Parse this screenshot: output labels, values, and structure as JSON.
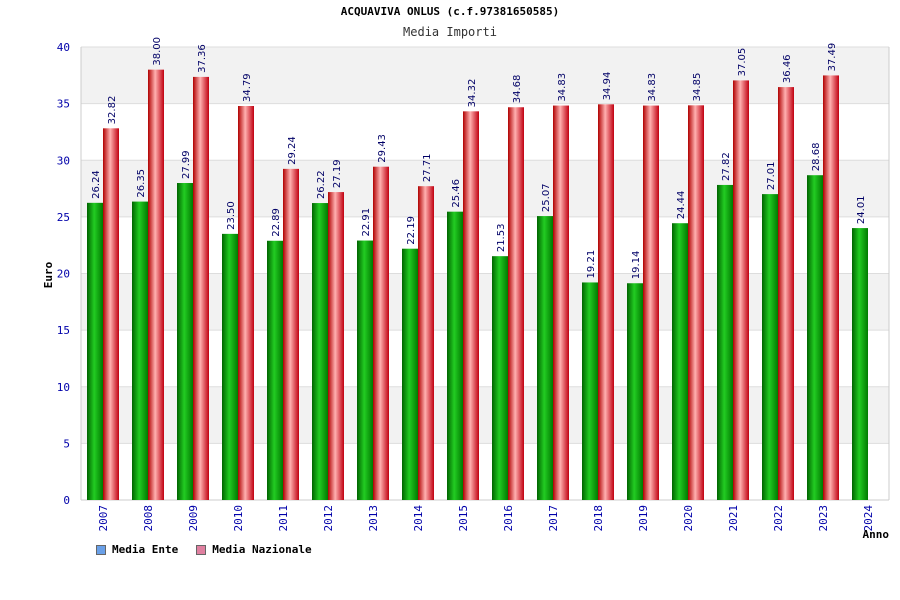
{
  "header": {
    "title": "ACQUAVIVA ONLUS (c.f.97381650585)",
    "subtitle": "Media Importi"
  },
  "colors": {
    "ente": "#0aa80a",
    "nazionale": "#e8202a",
    "band": "#f2f2f2",
    "axis_text": "#0000aa",
    "value_text": "#000066"
  },
  "legend": [
    {
      "label": "Media Ente",
      "swatch": "#6aa0e8"
    },
    {
      "label": "Media Nazionale",
      "swatch": "#e080a0"
    }
  ],
  "chart_data": {
    "type": "bar",
    "title": "ACQUAVIVA ONLUS (c.f.97381650585)",
    "subtitle": "Media Importi",
    "xlabel": "Anno",
    "ylabel": "Euro",
    "ylim": [
      0,
      40
    ],
    "yticks": [
      0,
      5,
      10,
      15,
      20,
      25,
      30,
      35,
      40
    ],
    "grid": true,
    "legend_position": "bottom-left",
    "categories": [
      "2007",
      "2008",
      "2009",
      "2010",
      "2011",
      "2012",
      "2013",
      "2014",
      "2015",
      "2016",
      "2017",
      "2018",
      "2019",
      "2020",
      "2021",
      "2022",
      "2023",
      "2024"
    ],
    "series": [
      {
        "name": "Media Ente",
        "values": [
          26.24,
          26.35,
          27.99,
          23.5,
          22.89,
          26.22,
          22.91,
          22.19,
          25.46,
          21.53,
          25.07,
          19.21,
          19.14,
          24.44,
          27.82,
          27.01,
          28.68,
          24.01
        ],
        "labels": [
          "26.24",
          "26.35",
          "27.99",
          "23.50",
          "22.89",
          "26.22",
          "22.91",
          "22.19",
          "25.46",
          "21.53",
          "25.07",
          "19.21",
          "19.14",
          "24.44",
          "27.82",
          "27.01",
          "28.68",
          "24.01"
        ]
      },
      {
        "name": "Media Nazionale",
        "values": [
          32.82,
          38.0,
          37.36,
          34.79,
          29.24,
          27.19,
          29.43,
          27.71,
          34.32,
          34.68,
          34.83,
          34.94,
          34.83,
          34.85,
          37.05,
          36.46,
          37.49,
          null
        ],
        "labels": [
          "32.82",
          "38.00",
          "37.36",
          "34.79",
          "29.24",
          "27.19",
          "29.43",
          "27.71",
          "34.32",
          "34.68",
          "34.83",
          "34.94",
          "34.83",
          "34.85",
          "37.05",
          "36.46",
          "37.49",
          ""
        ]
      }
    ]
  }
}
